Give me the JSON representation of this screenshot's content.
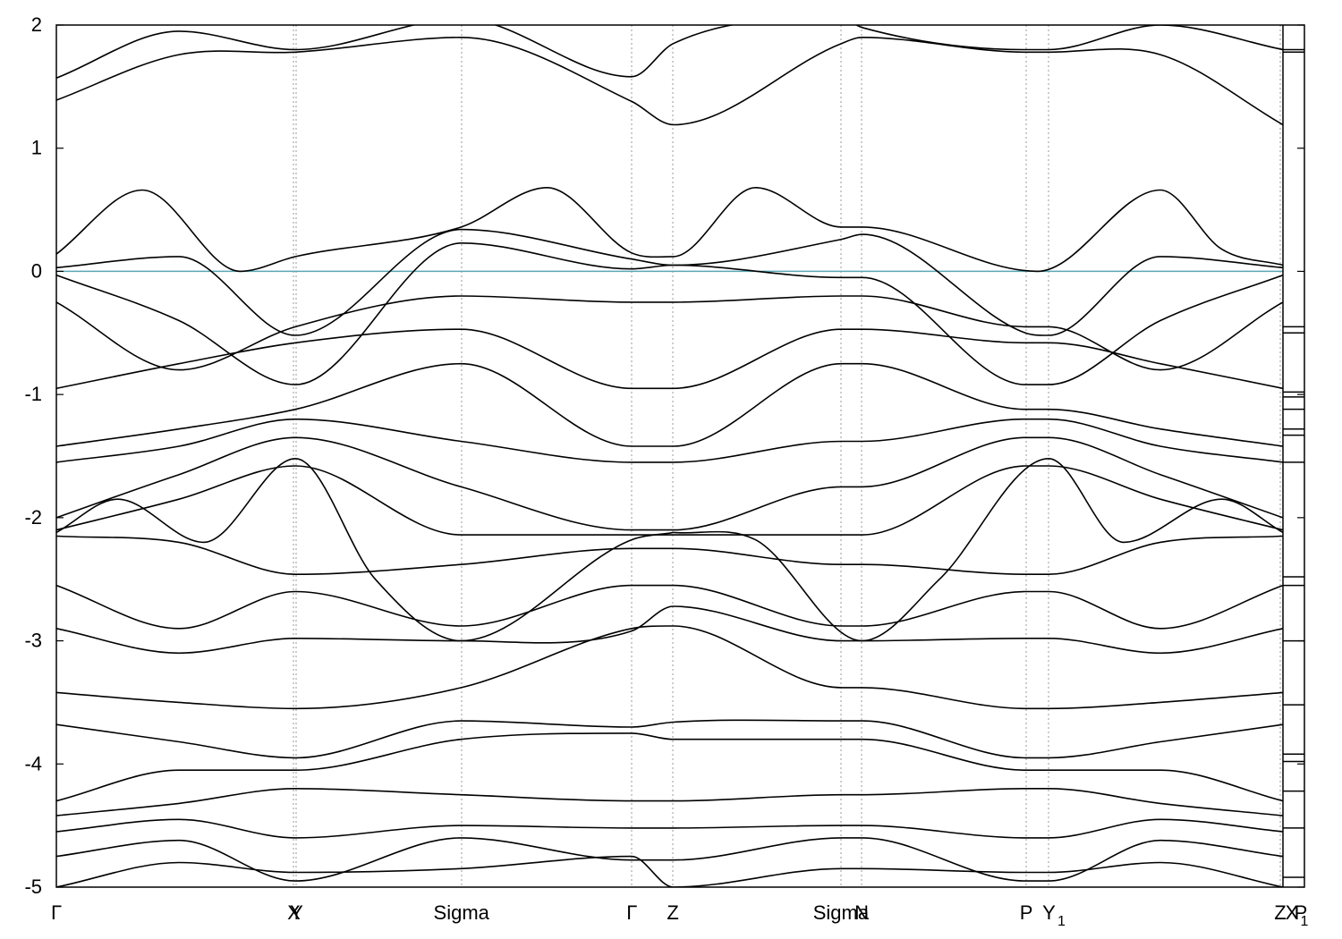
{
  "chart_data": {
    "type": "line",
    "title": "",
    "xlabel": "",
    "ylabel": "",
    "ylim": [
      -5,
      2
    ],
    "yticks": [
      -5,
      -4,
      -3,
      -2,
      -1,
      0,
      1,
      2
    ],
    "x_range": [
      0,
      1.0
    ],
    "grid": "dotted vertical lines at high-symmetry points",
    "legend": "none",
    "fermi_level": {
      "y": 0,
      "color": "#5aa7b4"
    },
    "band_color": "#000000",
    "kpoints": [
      {
        "label": "Γ",
        "x": 0.0
      },
      {
        "label": "X",
        "x": 0.1936
      },
      {
        "label": "Y",
        "x": 0.1958
      },
      {
        "label": "Sigma",
        "x": 0.3302
      },
      {
        "label": "Γ",
        "x": 0.4692
      },
      {
        "label": "Z",
        "x": 0.5026
      },
      {
        "label": "Sigma",
        "x": 0.6396
      },
      {
        "label": "N",
        "x": 0.6565
      },
      {
        "label": "P",
        "x": 0.7907
      },
      {
        "label": "Y",
        "x": 0.8092,
        "subscript": "1"
      },
      {
        "label": "Z",
        "x": 0.9978
      },
      {
        "label": "X",
        "x": 1.0,
        "subscript": "1"
      },
      {
        "label": "P",
        "x": 1.0
      }
    ],
    "series": [
      {
        "x": [
          0.0,
          0.1,
          0.195,
          0.33,
          0.469,
          0.503,
          0.64,
          0.657,
          0.79,
          0.809,
          0.9,
          1.0
        ],
        "values": [
          1.57,
          1.95,
          1.8,
          2.05,
          1.58,
          1.85,
          2.05,
          1.98,
          1.8,
          1.8,
          2.0,
          1.8
        ]
      },
      {
        "x": [
          0.0,
          0.1,
          0.195,
          0.33,
          0.469,
          0.503,
          0.64,
          0.657,
          0.79,
          0.809,
          0.9,
          1.0
        ],
        "values": [
          1.39,
          1.76,
          1.78,
          1.9,
          1.38,
          1.19,
          1.85,
          1.9,
          1.78,
          1.78,
          1.76,
          1.19
        ]
      },
      {
        "x": [
          0.0,
          0.07,
          0.15,
          0.195,
          0.33,
          0.4,
          0.469,
          0.503,
          0.57,
          0.64,
          0.657,
          0.8,
          0.9,
          0.95,
          1.0
        ],
        "values": [
          0.14,
          0.66,
          0.0,
          0.12,
          0.36,
          0.68,
          0.15,
          0.12,
          0.68,
          0.36,
          0.36,
          0.0,
          0.66,
          0.18,
          0.05
        ]
      },
      {
        "x": [
          0.0,
          0.1,
          0.195,
          0.33,
          0.469,
          0.503,
          0.64,
          0.657,
          0.79,
          0.809,
          0.9,
          1.0
        ],
        "values": [
          0.03,
          0.12,
          -0.52,
          0.34,
          0.1,
          0.05,
          0.26,
          0.3,
          -0.5,
          -0.52,
          0.12,
          0.03
        ]
      },
      {
        "x": [
          0.0,
          0.1,
          0.195,
          0.33,
          0.469,
          0.503,
          0.64,
          0.657,
          0.79,
          0.809,
          0.9,
          1.0
        ],
        "values": [
          -0.03,
          -0.4,
          -0.92,
          0.23,
          0.02,
          0.05,
          -0.05,
          -0.05,
          -0.92,
          -0.92,
          -0.4,
          -0.03
        ]
      },
      {
        "x": [
          0.0,
          0.1,
          0.195,
          0.33,
          0.469,
          0.503,
          0.64,
          0.657,
          0.79,
          0.809,
          0.9,
          1.0
        ],
        "values": [
          -0.25,
          -0.8,
          -0.45,
          -0.2,
          -0.25,
          -0.25,
          -0.2,
          -0.2,
          -0.45,
          -0.45,
          -0.8,
          -0.25
        ]
      },
      {
        "x": [
          0.0,
          0.1,
          0.195,
          0.33,
          0.469,
          0.503,
          0.64,
          0.657,
          0.79,
          0.809,
          0.9,
          1.0
        ],
        "values": [
          -0.95,
          -0.75,
          -0.58,
          -0.47,
          -0.95,
          -0.95,
          -0.47,
          -0.47,
          -0.58,
          -0.58,
          -0.75,
          -0.95
        ]
      },
      {
        "x": [
          0.0,
          0.1,
          0.195,
          0.33,
          0.469,
          0.503,
          0.64,
          0.657,
          0.79,
          0.809,
          0.9,
          1.0
        ],
        "values": [
          -1.42,
          -1.28,
          -1.12,
          -0.75,
          -1.42,
          -1.42,
          -0.75,
          -0.75,
          -1.12,
          -1.12,
          -1.28,
          -1.42
        ]
      },
      {
        "x": [
          0.0,
          0.1,
          0.195,
          0.33,
          0.469,
          0.503,
          0.64,
          0.657,
          0.79,
          0.809,
          0.9,
          1.0
        ],
        "values": [
          -1.55,
          -1.42,
          -1.2,
          -1.38,
          -1.55,
          -1.55,
          -1.38,
          -1.38,
          -1.2,
          -1.2,
          -1.42,
          -1.55
        ]
      },
      {
        "x": [
          0.0,
          0.1,
          0.195,
          0.33,
          0.469,
          0.503,
          0.64,
          0.657,
          0.79,
          0.809,
          0.9,
          1.0
        ],
        "values": [
          -2.0,
          -1.65,
          -1.35,
          -1.75,
          -2.1,
          -2.1,
          -1.75,
          -1.75,
          -1.35,
          -1.35,
          -1.65,
          -2.0
        ]
      },
      {
        "x": [
          0.0,
          0.1,
          0.195,
          0.33,
          0.469,
          0.503,
          0.64,
          0.657,
          0.79,
          0.809,
          0.9,
          1.0
        ],
        "values": [
          -2.1,
          -1.85,
          -1.58,
          -2.14,
          -2.14,
          -2.14,
          -2.14,
          -2.14,
          -1.58,
          -1.58,
          -1.85,
          -2.1
        ]
      },
      {
        "x": [
          0.0,
          0.1,
          0.195,
          0.33,
          0.469,
          0.503,
          0.64,
          0.657,
          0.79,
          0.809,
          0.9,
          1.0
        ],
        "values": [
          -2.15,
          -2.2,
          -2.46,
          -2.38,
          -2.25,
          -2.25,
          -2.38,
          -2.38,
          -2.46,
          -2.46,
          -2.2,
          -2.15
        ]
      },
      {
        "x": [
          0.0,
          0.1,
          0.195,
          0.33,
          0.469,
          0.503,
          0.64,
          0.657,
          0.79,
          0.809,
          0.9,
          1.0
        ],
        "values": [
          -2.55,
          -2.9,
          -2.6,
          -2.88,
          -2.55,
          -2.55,
          -2.88,
          -2.88,
          -2.6,
          -2.6,
          -2.9,
          -2.55
        ]
      },
      {
        "x": [
          0.0,
          0.1,
          0.195,
          0.33,
          0.469,
          0.503,
          0.64,
          0.657,
          0.79,
          0.809,
          0.9,
          1.0
        ],
        "values": [
          -2.9,
          -3.1,
          -2.98,
          -3.0,
          -2.92,
          -2.72,
          -3.0,
          -3.0,
          -2.98,
          -2.98,
          -3.1,
          -2.9
        ]
      },
      {
        "x": [
          0.0,
          0.1,
          0.195,
          0.33,
          0.469,
          0.503,
          0.64,
          0.657,
          0.79,
          0.809,
          0.9,
          1.0
        ],
        "values": [
          -3.42,
          -3.5,
          -3.55,
          -3.38,
          -2.9,
          -2.88,
          -3.38,
          -3.38,
          -3.55,
          -3.55,
          -3.5,
          -3.42
        ]
      },
      {
        "x": [
          0.0,
          0.1,
          0.195,
          0.33,
          0.469,
          0.503,
          0.64,
          0.657,
          0.79,
          0.809,
          0.9,
          1.0
        ],
        "values": [
          -3.68,
          -3.82,
          -3.95,
          -3.65,
          -3.7,
          -3.66,
          -3.65,
          -3.65,
          -3.95,
          -3.95,
          -3.82,
          -3.68
        ]
      },
      {
        "x": [
          0.0,
          0.1,
          0.195,
          0.33,
          0.469,
          0.503,
          0.64,
          0.657,
          0.79,
          0.809,
          0.9,
          1.0
        ],
        "values": [
          -4.3,
          -4.05,
          -4.05,
          -3.8,
          -3.75,
          -3.8,
          -3.8,
          -3.8,
          -4.05,
          -4.05,
          -4.05,
          -4.3
        ]
      },
      {
        "x": [
          0.0,
          0.1,
          0.195,
          0.33,
          0.469,
          0.503,
          0.64,
          0.657,
          0.79,
          0.809,
          0.9,
          1.0
        ],
        "values": [
          -4.42,
          -4.32,
          -4.2,
          -4.25,
          -4.3,
          -4.3,
          -4.25,
          -4.25,
          -4.2,
          -4.2,
          -4.32,
          -4.42
        ]
      },
      {
        "x": [
          0.0,
          0.1,
          0.195,
          0.33,
          0.469,
          0.503,
          0.64,
          0.657,
          0.79,
          0.809,
          0.9,
          1.0
        ],
        "values": [
          -4.55,
          -4.45,
          -4.6,
          -4.5,
          -4.52,
          -4.52,
          -4.5,
          -4.5,
          -4.6,
          -4.6,
          -4.45,
          -4.55
        ]
      },
      {
        "x": [
          0.0,
          0.1,
          0.195,
          0.33,
          0.469,
          0.503,
          0.64,
          0.657,
          0.79,
          0.809,
          0.9,
          1.0
        ],
        "values": [
          -4.75,
          -4.62,
          -4.95,
          -4.6,
          -4.78,
          -4.78,
          -4.6,
          -4.6,
          -4.95,
          -4.95,
          -4.62,
          -4.75
        ]
      },
      {
        "x": [
          0.0,
          0.1,
          0.195,
          0.33,
          0.469,
          0.503,
          0.64,
          0.657,
          0.79,
          0.809,
          0.9,
          1.0
        ],
        "values": [
          -5.0,
          -4.8,
          -4.88,
          -4.85,
          -4.75,
          -5.0,
          -4.85,
          -4.85,
          -4.88,
          -4.88,
          -4.8,
          -5.0
        ]
      },
      {
        "x": [
          0.0,
          0.05,
          0.12,
          0.195,
          0.26,
          0.33,
          0.469,
          0.503
        ],
        "values": [
          -2.12,
          -1.85,
          -2.2,
          -1.52,
          -2.5,
          -3.0,
          -2.18,
          -2.12
        ]
      },
      {
        "x": [
          0.503,
          0.57,
          0.657,
          0.72,
          0.809,
          0.87,
          0.95,
          1.0
        ],
        "values": [
          -2.12,
          -2.18,
          -3.0,
          -2.5,
          -1.52,
          -2.2,
          -1.85,
          -2.12
        ]
      }
    ],
    "side_panel": {
      "levels": [
        1.8,
        1.78,
        -0.45,
        -0.5,
        -0.98,
        -1.02,
        -1.12,
        -1.28,
        -1.33,
        -1.55,
        -2.48,
        -2.55,
        -3.0,
        -3.52,
        -3.92,
        -3.98,
        -4.22,
        -4.52,
        -4.92
      ]
    }
  }
}
